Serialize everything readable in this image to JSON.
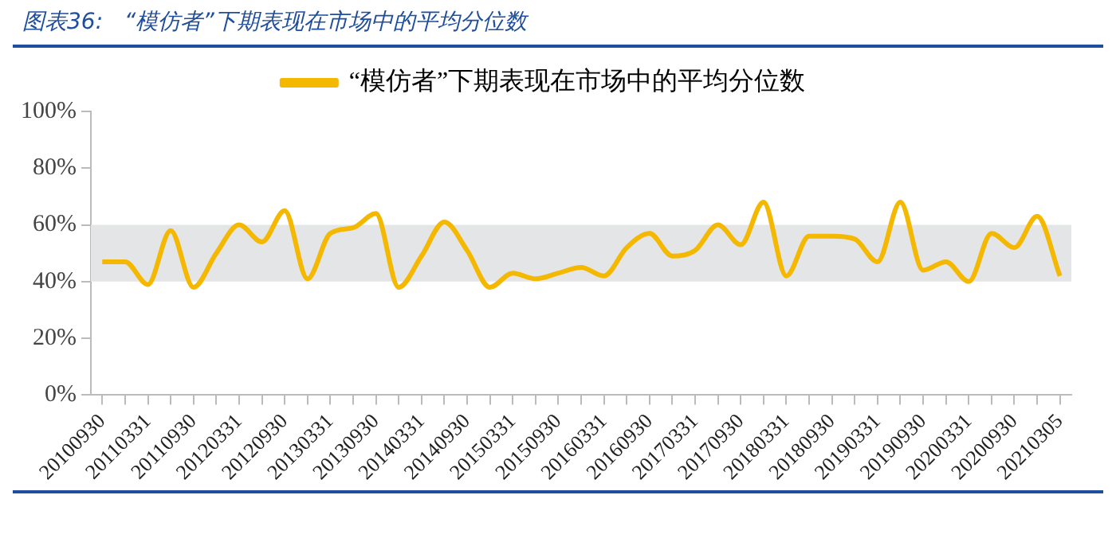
{
  "chart_data": {
    "type": "line",
    "title": "图表36:   “模仿者”下期表现在市场中的平均分位数",
    "categories": [
      "20100930",
      null,
      "20110331",
      null,
      "20110930",
      null,
      "20120331",
      null,
      "20120930",
      null,
      "20130331",
      null,
      "20130930",
      null,
      "20140331",
      null,
      "20140930",
      null,
      "20150331",
      null,
      "20150930",
      null,
      "20160331",
      null,
      "20160930",
      null,
      "20170331",
      null,
      "20170930",
      null,
      "20180331",
      null,
      "20180930",
      null,
      "20190331",
      null,
      "20190930",
      null,
      "20200331",
      null,
      "20200930",
      null,
      "20210305"
    ],
    "series": [
      {
        "name": "“模仿者”下期表现在市场中的平均分位数",
        "color": "#f5b800",
        "values": [
          47,
          47,
          39,
          58,
          38,
          50,
          60,
          54,
          65,
          41,
          57,
          59,
          64,
          38,
          49,
          61,
          51,
          38,
          43,
          41,
          43,
          45,
          42,
          52,
          57,
          49,
          51,
          60,
          53,
          68,
          42,
          56,
          56,
          55,
          47,
          68,
          44,
          47,
          40,
          57,
          52,
          63,
          42
        ]
      }
    ],
    "ylim": [
      0,
      100
    ],
    "yticks": [
      {
        "value": 0,
        "label": "0%"
      },
      {
        "value": 20,
        "label": "20%"
      },
      {
        "value": 40,
        "label": "40%"
      },
      {
        "value": 60,
        "label": "60%"
      },
      {
        "value": 80,
        "label": "80%"
      },
      {
        "value": 100,
        "label": "100%"
      }
    ],
    "bands": [
      {
        "axis": "y",
        "from": 40,
        "to": 60,
        "color": "#e4e5e6"
      }
    ],
    "grid": false,
    "legend": "top",
    "marker": "none",
    "line_style": "solid"
  }
}
